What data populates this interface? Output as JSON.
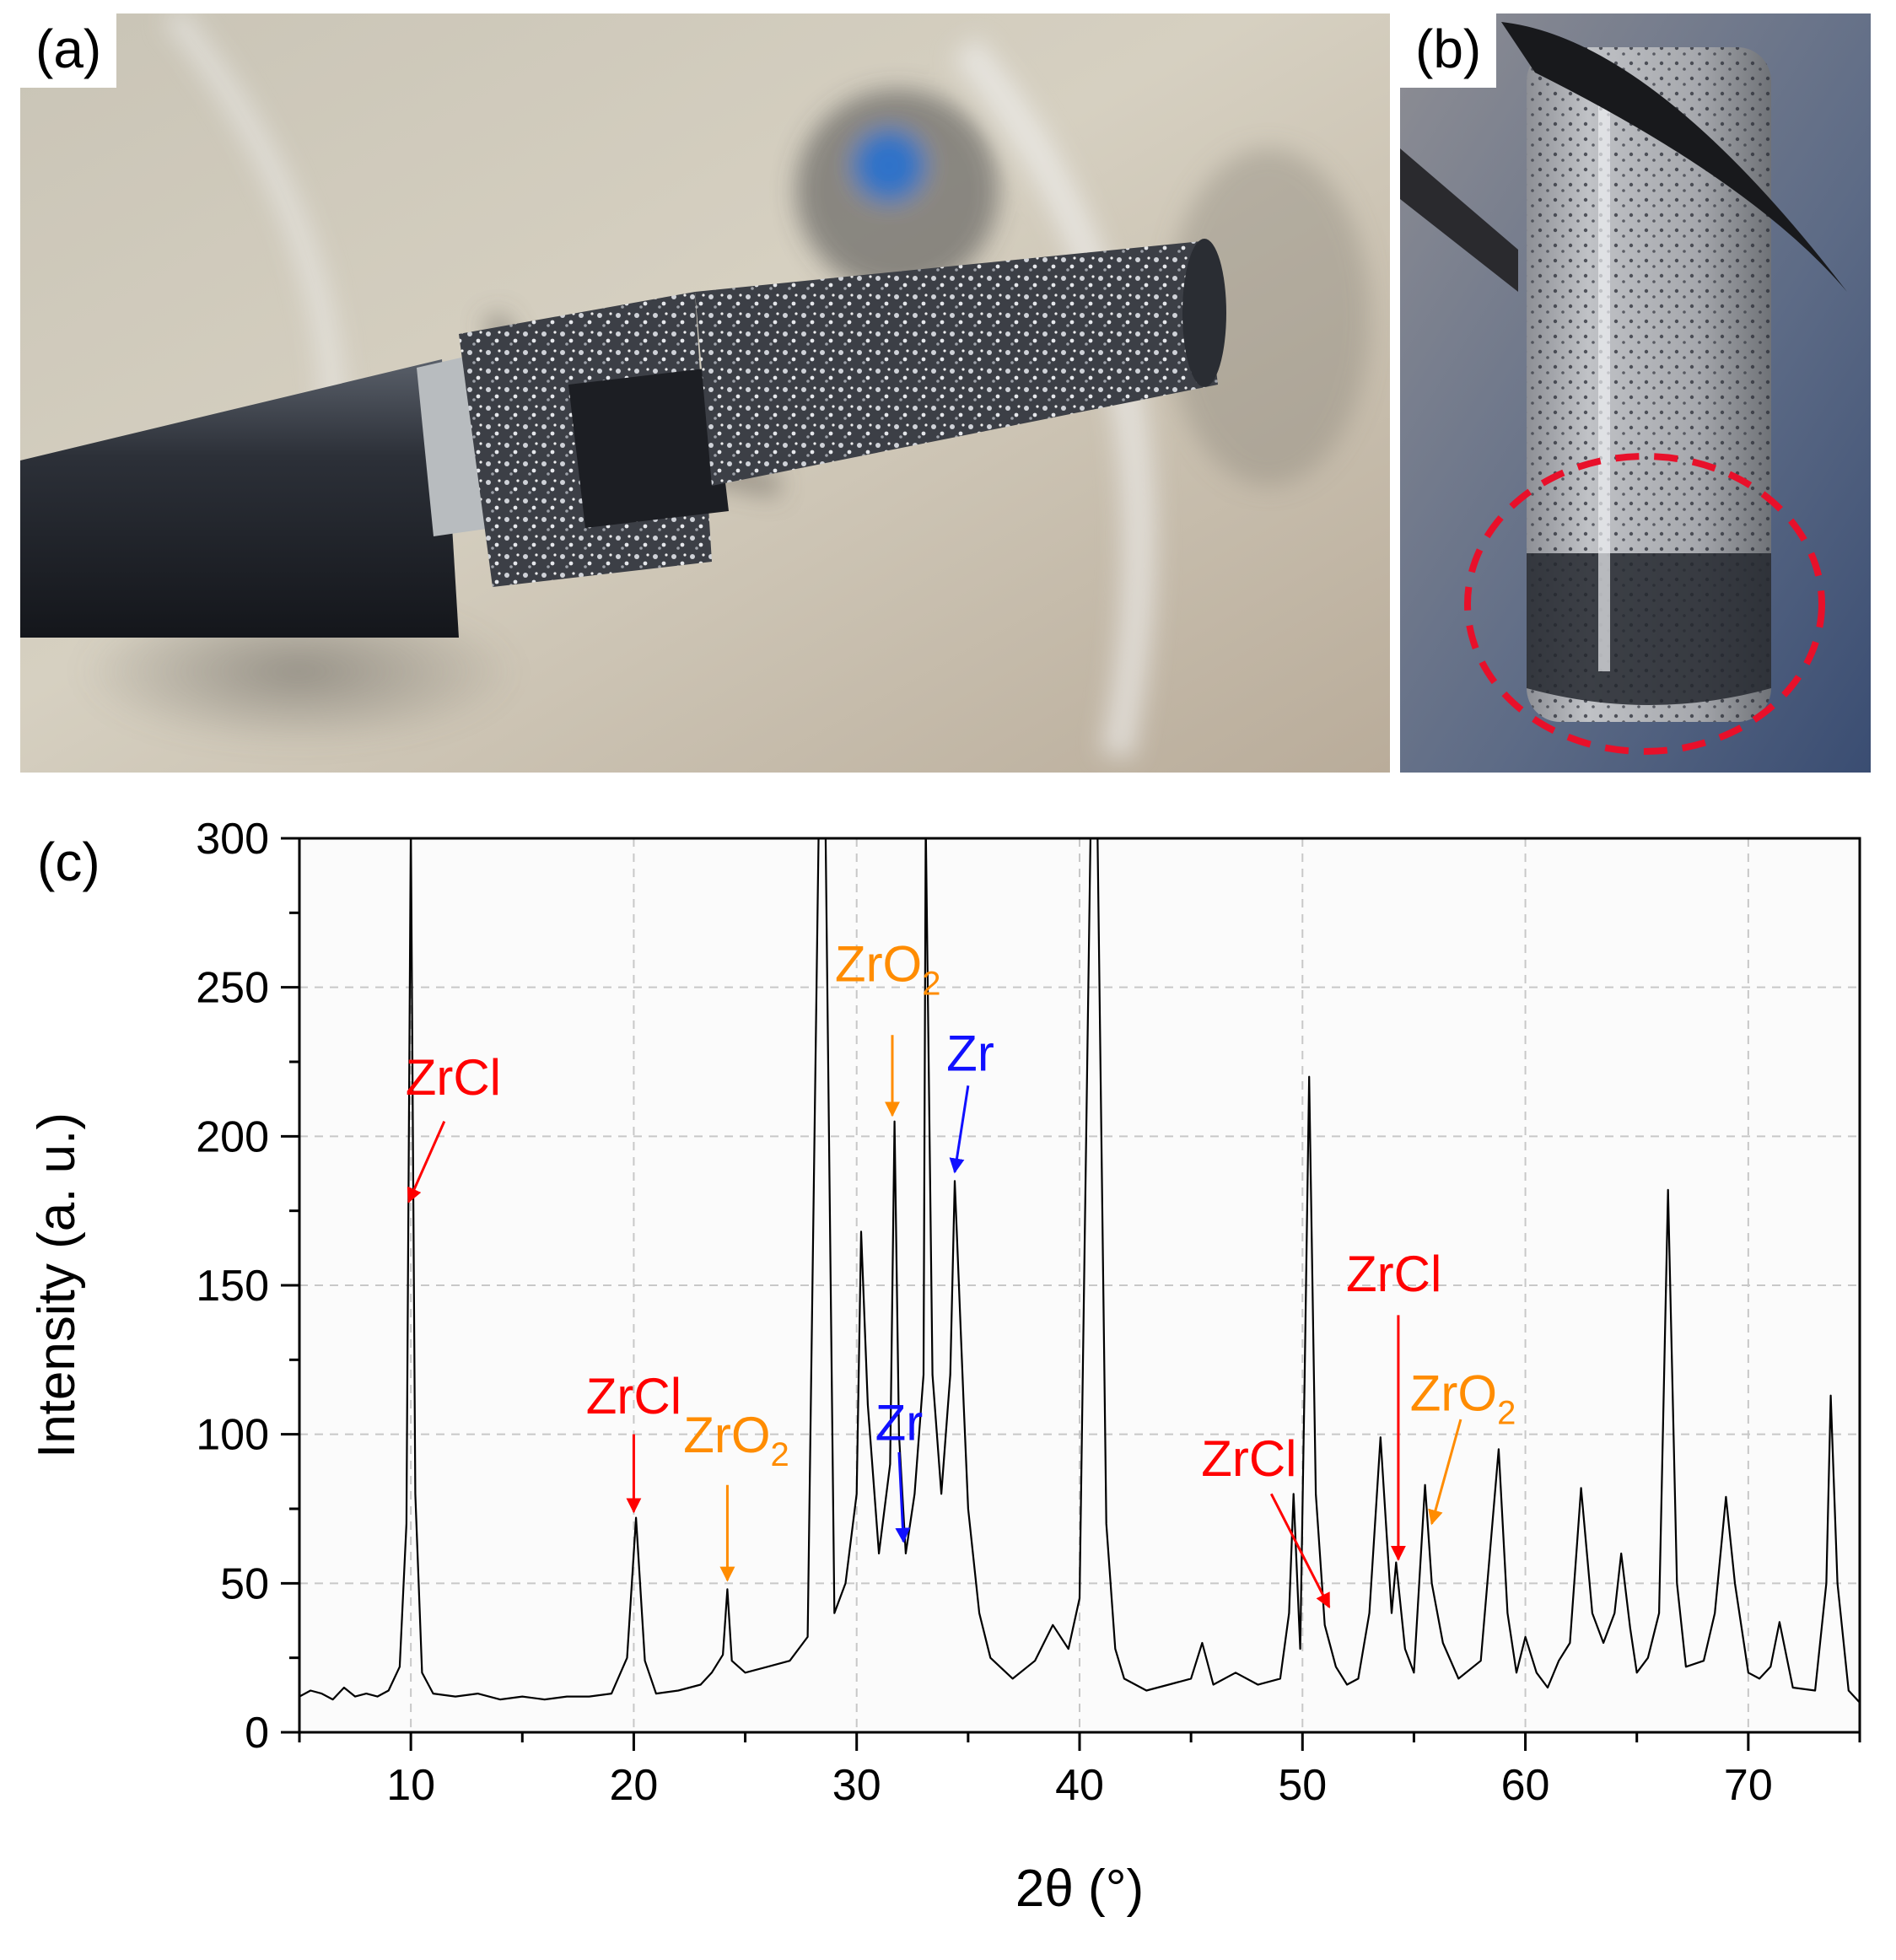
{
  "panels": {
    "a": "(a)",
    "b": "(b)",
    "c": "(c)"
  },
  "colors": {
    "zrcl": "#ff0000",
    "zro2": "#ff8c00",
    "zr": "#1010ff",
    "highlight_circle": "#e8102a",
    "trace": "#000000"
  },
  "chart_data": {
    "type": "line",
    "title": "",
    "xlabel": "2θ (°)",
    "ylabel": "Intensity (a. u.)",
    "xlim": [
      5,
      75
    ],
    "ylim": [
      0,
      300
    ],
    "xticks": [
      10,
      20,
      30,
      40,
      50,
      60,
      70
    ],
    "yticks": [
      0,
      50,
      100,
      150,
      200,
      250,
      300
    ],
    "grid": true,
    "series": [
      {
        "values": [
          [
            5,
            12
          ],
          [
            5.5,
            14
          ],
          [
            6,
            13
          ],
          [
            6.5,
            11
          ],
          [
            7,
            15
          ],
          [
            7.5,
            12
          ],
          [
            8,
            13
          ],
          [
            8.5,
            12
          ],
          [
            9,
            14
          ],
          [
            9.5,
            22
          ],
          [
            9.8,
            70
          ],
          [
            10,
            460
          ],
          [
            10.2,
            80
          ],
          [
            10.5,
            20
          ],
          [
            11,
            13
          ],
          [
            12,
            12
          ],
          [
            13,
            13
          ],
          [
            14,
            11
          ],
          [
            15,
            12
          ],
          [
            16,
            11
          ],
          [
            17,
            12
          ],
          [
            18,
            12
          ],
          [
            19,
            13
          ],
          [
            19.7,
            25
          ],
          [
            20.1,
            72
          ],
          [
            20.5,
            24
          ],
          [
            21,
            13
          ],
          [
            22,
            14
          ],
          [
            23,
            16
          ],
          [
            23.5,
            20
          ],
          [
            24,
            26
          ],
          [
            24.2,
            48
          ],
          [
            24.4,
            24
          ],
          [
            25,
            20
          ],
          [
            26,
            22
          ],
          [
            27,
            24
          ],
          [
            27.8,
            32
          ],
          [
            28.3,
            460
          ],
          [
            28.6,
            460
          ],
          [
            29,
            40
          ],
          [
            29.5,
            50
          ],
          [
            30,
            80
          ],
          [
            30.2,
            168
          ],
          [
            30.5,
            110
          ],
          [
            31,
            60
          ],
          [
            31.5,
            90
          ],
          [
            31.7,
            205
          ],
          [
            31.9,
            100
          ],
          [
            32.2,
            60
          ],
          [
            32.6,
            80
          ],
          [
            33,
            120
          ],
          [
            33.1,
            460
          ],
          [
            33.4,
            120
          ],
          [
            33.8,
            80
          ],
          [
            34.2,
            120
          ],
          [
            34.4,
            185
          ],
          [
            34.8,
            110
          ],
          [
            35,
            75
          ],
          [
            35.5,
            40
          ],
          [
            36,
            25
          ],
          [
            37,
            18
          ],
          [
            38,
            24
          ],
          [
            38.8,
            36
          ],
          [
            39.5,
            28
          ],
          [
            40,
            45
          ],
          [
            40.5,
            460
          ],
          [
            40.8,
            460
          ],
          [
            41.2,
            70
          ],
          [
            41.6,
            28
          ],
          [
            42,
            18
          ],
          [
            43,
            14
          ],
          [
            44,
            16
          ],
          [
            45,
            18
          ],
          [
            45.5,
            30
          ],
          [
            46,
            16
          ],
          [
            47,
            20
          ],
          [
            48,
            16
          ],
          [
            49,
            18
          ],
          [
            49.4,
            40
          ],
          [
            49.6,
            80
          ],
          [
            49.9,
            28
          ],
          [
            50.1,
            120
          ],
          [
            50.3,
            220
          ],
          [
            50.6,
            80
          ],
          [
            51,
            36
          ],
          [
            51.5,
            22
          ],
          [
            52,
            16
          ],
          [
            52.5,
            18
          ],
          [
            53,
            40
          ],
          [
            53.5,
            99
          ],
          [
            54,
            40
          ],
          [
            54.2,
            57
          ],
          [
            54.6,
            28
          ],
          [
            55,
            20
          ],
          [
            55.5,
            83
          ],
          [
            55.8,
            50
          ],
          [
            56.3,
            30
          ],
          [
            57,
            18
          ],
          [
            58,
            24
          ],
          [
            58.8,
            95
          ],
          [
            59.2,
            40
          ],
          [
            59.6,
            20
          ],
          [
            60,
            32
          ],
          [
            60.5,
            20
          ],
          [
            61,
            15
          ],
          [
            61.5,
            24
          ],
          [
            62,
            30
          ],
          [
            62.5,
            82
          ],
          [
            63,
            40
          ],
          [
            63.5,
            30
          ],
          [
            64,
            40
          ],
          [
            64.3,
            60
          ],
          [
            64.7,
            35
          ],
          [
            65,
            20
          ],
          [
            65.5,
            25
          ],
          [
            66,
            40
          ],
          [
            66.4,
            182
          ],
          [
            66.8,
            50
          ],
          [
            67.2,
            22
          ],
          [
            68,
            24
          ],
          [
            68.5,
            40
          ],
          [
            69,
            79
          ],
          [
            69.4,
            50
          ],
          [
            70,
            20
          ],
          [
            70.5,
            18
          ],
          [
            71,
            22
          ],
          [
            71.4,
            37
          ],
          [
            72,
            15
          ],
          [
            73,
            14
          ],
          [
            73.5,
            50
          ],
          [
            73.7,
            113
          ],
          [
            74,
            50
          ],
          [
            74.5,
            14
          ],
          [
            75,
            10
          ]
        ]
      }
    ],
    "annotations": [
      {
        "text": "ZrCl",
        "sub": "",
        "phase": "zrcl",
        "tx": 11.9,
        "ty": 214,
        "from": [
          11.5,
          205
        ],
        "to": [
          9.9,
          178
        ],
        "bend": false
      },
      {
        "text": "ZrCl",
        "sub": "",
        "phase": "zrcl",
        "tx": 20,
        "ty": 107,
        "from": [
          20,
          100
        ],
        "to": [
          20,
          74
        ],
        "bend": false
      },
      {
        "text": "ZrO",
        "sub": "2",
        "phase": "zro2",
        "tx": 24.6,
        "ty": 94,
        "from": [
          24.2,
          83
        ],
        "to": [
          24.2,
          51
        ],
        "bend": false
      },
      {
        "text": "ZrO",
        "sub": "2",
        "phase": "zro2",
        "tx": 31.4,
        "ty": 252,
        "from": [
          31.6,
          234
        ],
        "to": [
          31.6,
          207
        ],
        "bend": false
      },
      {
        "text": "Zr",
        "sub": "",
        "phase": "zr",
        "tx": 35.1,
        "ty": 222,
        "from": [
          35,
          217
        ],
        "to": [
          34.4,
          188
        ],
        "bend": false
      },
      {
        "text": "Zr",
        "sub": "",
        "phase": "zr",
        "tx": 31.9,
        "ty": 98,
        "from": [
          31.9,
          94
        ],
        "to": [
          32.1,
          64
        ],
        "bend": false
      },
      {
        "text": "ZrCl",
        "sub": "",
        "phase": "zrcl",
        "tx": 54.1,
        "ty": 148,
        "from": [
          54.3,
          140
        ],
        "to": [
          54.3,
          58
        ],
        "bend": false
      },
      {
        "text": "ZrO",
        "sub": "2",
        "phase": "zro2",
        "tx": 57.2,
        "ty": 108,
        "from": [
          57.1,
          105
        ],
        "to": [
          55.8,
          70
        ],
        "bend": false
      },
      {
        "text": "ZrCl",
        "sub": "",
        "phase": "zrcl",
        "tx": 47.6,
        "ty": 86,
        "from": [
          48.6,
          80
        ],
        "to": [
          51.2,
          42
        ],
        "bend": false
      }
    ]
  }
}
